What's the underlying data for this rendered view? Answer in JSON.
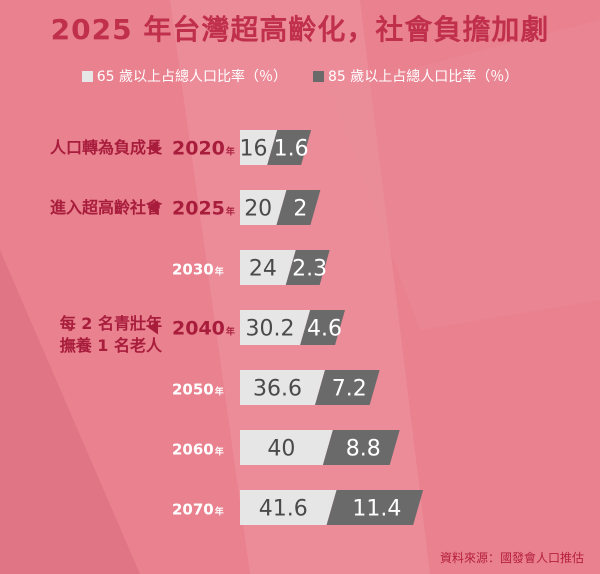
{
  "title": "2025 年台灣超高齡化，社會負擔加劇",
  "legend": {
    "light": "65 歲以上占總人口比率（％）",
    "dark": "85 歲以上占總人口比率（％）"
  },
  "colors": {
    "background": "#e9818f",
    "title": "#c0304d",
    "highlight_text": "#a81c3c",
    "bar_65": "#e6e6e6",
    "bar_85": "#6a6a6a"
  },
  "year_suffix": "年",
  "notes": {
    "2020": [
      "人口轉為負成長"
    ],
    "2025": [
      "進入超高齡社會"
    ],
    "2040": [
      "每 2 名青壯年",
      "撫養 1 名老人"
    ]
  },
  "source": "資料來源：國發會人口推估",
  "chart_data": {
    "type": "bar",
    "orientation": "horizontal",
    "stacked": true,
    "categories": [
      "2020",
      "2025",
      "2030",
      "2040",
      "2050",
      "2060",
      "2070"
    ],
    "highlighted": [
      "2020",
      "2025",
      "2040"
    ],
    "series": [
      {
        "name": "65 歲以上占總人口比率（％）",
        "values": [
          16,
          20,
          24,
          30.2,
          36.6,
          40,
          41.6
        ]
      },
      {
        "name": "85 歲以上占總人口比率（％）",
        "values": [
          1.6,
          2,
          2.3,
          4.6,
          7.2,
          8.8,
          11.4
        ]
      }
    ]
  }
}
